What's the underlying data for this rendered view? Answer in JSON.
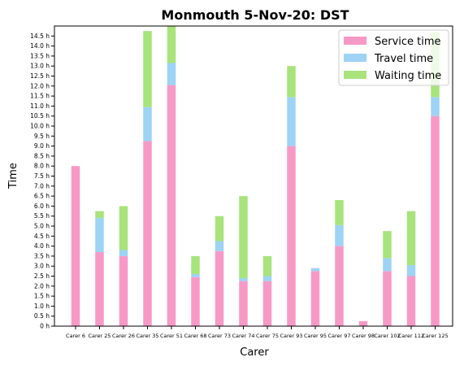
{
  "chart_data": {
    "type": "bar",
    "title": "Monmouth 5-Nov-20: DST",
    "xlabel": "Carer",
    "ylabel": "Time",
    "categories": [
      "Carer 6",
      "Carer 25",
      "Carer 26",
      "Carer 35",
      "Carer 51",
      "Carer 68",
      "Carer 73",
      "Carer 74",
      "Carer 75",
      "Carer 93",
      "Carer 95",
      "Carer 97",
      "Carer 98",
      "Carer 102",
      "Carer 112",
      "Carer 125"
    ],
    "series": [
      {
        "name": "Service time",
        "color": "#f799c6",
        "values": [
          8.0,
          3.7,
          3.5,
          9.25,
          12.05,
          2.45,
          3.75,
          2.25,
          2.25,
          9.0,
          2.75,
          4.0,
          0.25,
          2.75,
          2.5,
          10.5
        ]
      },
      {
        "name": "Travel time",
        "color": "#9dd3f5",
        "values": [
          0.0,
          1.7,
          0.3,
          1.7,
          1.1,
          0.15,
          0.5,
          0.15,
          0.25,
          2.45,
          0.15,
          1.05,
          0.0,
          0.65,
          0.55,
          0.95
        ]
      },
      {
        "name": "Waiting time",
        "color": "#a8e37c",
        "values": [
          0.0,
          0.35,
          2.2,
          3.8,
          1.85,
          0.9,
          1.25,
          4.1,
          1.0,
          1.55,
          0.0,
          1.25,
          0.0,
          1.35,
          2.7,
          3.25
        ]
      }
    ],
    "ylim": [
      0,
      15.0
    ],
    "yticks": [
      "0 h",
      "0.5 h",
      "1.0 h",
      "1.5 h",
      "2.0 h",
      "2.5 h",
      "3.0 h",
      "3.5 h",
      "4.0 h",
      "4.5 h",
      "5.0 h",
      "5.5 h",
      "6.0 h",
      "6.5 h",
      "7.0 h",
      "7.5 h",
      "8.0 h",
      "8.5 h",
      "9.0 h",
      "9.5 h",
      "10.0 h",
      "10.5 h",
      "11.0 h",
      "11.5 h",
      "12.0 h",
      "12.5 h",
      "13.0 h",
      "13.5 h",
      "14.0 h",
      "14.5 h"
    ],
    "grid": false,
    "legend": "top-right"
  }
}
